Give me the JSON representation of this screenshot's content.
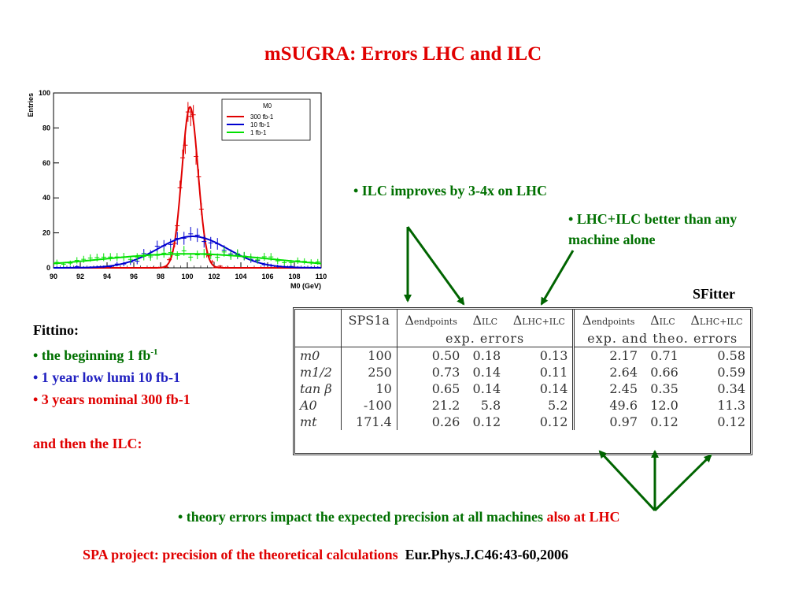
{
  "slide": {
    "title": "mSUGRA: Errors LHC and ILC",
    "bullet_ilc": "• ILC improves by 3-4x on LHC",
    "bullet_lhcilc_1": "• LHC+ILC better than any",
    "bullet_lhcilc_2": "machine alone",
    "sfitter_label": "SFitter",
    "fittino": {
      "heading": "Fittino:",
      "item1": "•  the beginning 1 fb",
      "item1_sup": "-1",
      "item2": "• 1 year low lumi 10 fb-1",
      "item3": "• 3 years nominal 300 fb-1",
      "then": "and then the ILC:"
    },
    "theory_note_prefix": "• theory errors impact the expected precision at all machines ",
    "theory_note_suffix": "also at LHC",
    "spa_project": "SPA project: precision of the theoretical calculations",
    "reference": "Eur.Phys.J.C46:43-60,2006",
    "colors": {
      "red": "#e00000",
      "green": "#007000",
      "blue": "#2020c0",
      "arrow": "#006400"
    }
  },
  "table": {
    "col_headers": [
      "SPS1a",
      "Δendpoints",
      "ΔILC",
      "ΔLHC+ILC",
      "Δendpoints",
      "ΔILC",
      "ΔLHC+ILC"
    ],
    "group_exp": "exp. errors",
    "group_theo": "exp. and theo. errors",
    "rows": [
      {
        "param": "m0",
        "values": [
          "100",
          "0.50",
          "0.18",
          "0.13",
          "2.17",
          "0.71",
          "0.58"
        ]
      },
      {
        "param": "m1/2",
        "values": [
          "250",
          "0.73",
          "0.14",
          "0.11",
          "2.64",
          "0.66",
          "0.59"
        ]
      },
      {
        "param": "tan β",
        "values": [
          "10",
          "0.65",
          "0.14",
          "0.14",
          "2.45",
          "0.35",
          "0.34"
        ]
      },
      {
        "param": "A0",
        "values": [
          "-100",
          "21.2",
          "5.8",
          "5.2",
          "49.6",
          "12.0",
          "11.3"
        ]
      },
      {
        "param": "mt",
        "values": [
          "171.4",
          "0.26",
          "0.12",
          "0.12",
          "0.97",
          "0.12",
          "0.12"
        ]
      }
    ]
  },
  "chart_data": {
    "type": "line",
    "xlabel": "M0 (GeV)",
    "ylabel": "Entries",
    "xlim": [
      90,
      110
    ],
    "ylim": [
      0,
      100
    ],
    "xticks": [
      "90",
      "92",
      "94",
      "96",
      "98",
      "100",
      "102",
      "104",
      "106",
      "108",
      "110"
    ],
    "yticks": [
      "0",
      "20",
      "40",
      "60",
      "80",
      "100"
    ],
    "legend_title": "M0",
    "legend_position": "top-right",
    "series": [
      {
        "name": "300 fb-1",
        "color": "#e00000",
        "mean": 100.2,
        "sigma": 0.6,
        "peak": 92
      },
      {
        "name": "10 fb-1",
        "color": "#0000d0",
        "mean": 100.4,
        "sigma": 2.6,
        "peak": 18
      },
      {
        "name": "1 fb-1",
        "color": "#00e000",
        "mean": 100.0,
        "sigma": 6.5,
        "peak": 8
      }
    ]
  }
}
